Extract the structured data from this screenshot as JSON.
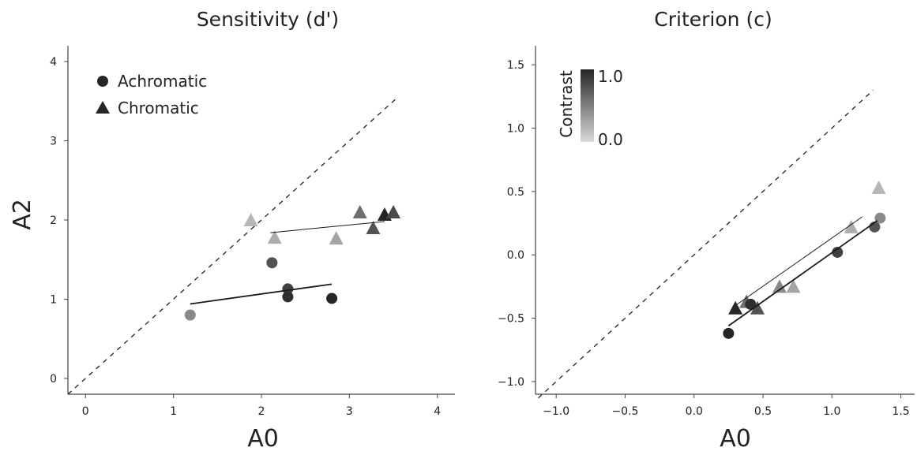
{
  "chart_data": [
    {
      "type": "scatter",
      "title": "Sensitivity (d')",
      "xlabel": "A0",
      "ylabel": "A2",
      "xlim": [
        -0.2,
        4.2
      ],
      "ylim": [
        -0.2,
        4.2
      ],
      "xticks": [
        0,
        1,
        2,
        3,
        4
      ],
      "yticks": [
        0,
        1,
        2,
        3,
        4
      ],
      "xtick_labels": [
        "0",
        "1",
        "2",
        "3",
        "4"
      ],
      "ytick_labels": [
        "0",
        "1",
        "2",
        "3",
        "4"
      ],
      "grid": false,
      "identity_line": {
        "style": "dashed",
        "from": [
          -0.2,
          -0.2
        ],
        "to": [
          3.55,
          3.55
        ]
      },
      "legend": {
        "position": "top-left",
        "entries": [
          {
            "label": "Achromatic",
            "marker": "circle"
          },
          {
            "label": "Chromatic",
            "marker": "triangle"
          }
        ]
      },
      "series": [
        {
          "name": "Achromatic",
          "marker": "circle",
          "points": [
            {
              "x": 1.19,
              "y": 0.8,
              "contrast": 0.45
            },
            {
              "x": 2.12,
              "y": 1.46,
              "contrast": 0.75
            },
            {
              "x": 2.3,
              "y": 1.13,
              "contrast": 0.85
            },
            {
              "x": 2.3,
              "y": 1.03,
              "contrast": 0.95
            },
            {
              "x": 2.8,
              "y": 1.01,
              "contrast": 1.0
            }
          ],
          "fit_line": {
            "from": [
              1.19,
              0.94
            ],
            "to": [
              2.8,
              1.19
            ],
            "weight": "thick"
          }
        },
        {
          "name": "Chromatic",
          "marker": "triangle",
          "points": [
            {
              "x": 1.88,
              "y": 2.0,
              "contrast": 0.2
            },
            {
              "x": 2.15,
              "y": 1.78,
              "contrast": 0.25
            },
            {
              "x": 2.85,
              "y": 1.77,
              "contrast": 0.3
            },
            {
              "x": 3.12,
              "y": 2.1,
              "contrast": 0.6
            },
            {
              "x": 3.27,
              "y": 1.9,
              "contrast": 0.75
            },
            {
              "x": 3.4,
              "y": 2.07,
              "contrast": 1.0
            },
            {
              "x": 3.5,
              "y": 2.1,
              "contrast": 0.8
            }
          ],
          "fit_line": {
            "from": [
              2.1,
              1.84
            ],
            "to": [
              3.4,
              1.98
            ],
            "weight": "thin"
          }
        }
      ]
    },
    {
      "type": "scatter",
      "title": "Criterion (c)",
      "xlabel": "A0",
      "ylabel": "",
      "xlim": [
        -1.15,
        1.6
      ],
      "ylim": [
        -1.1,
        1.65
      ],
      "xticks": [
        -1.0,
        -0.5,
        0.0,
        0.5,
        1.0,
        1.5
      ],
      "yticks": [
        -1.0,
        -0.5,
        0.0,
        0.5,
        1.0,
        1.5
      ],
      "xtick_labels": [
        "−1.0",
        "−0.5",
        "0.0",
        "0.5",
        "1.0",
        "1.5"
      ],
      "ytick_labels": [
        "−1.0",
        "−0.5",
        "0.0",
        "0.5",
        "1.0",
        "1.5"
      ],
      "grid": false,
      "identity_line": {
        "style": "dashed",
        "from": [
          -1.13,
          -1.13
        ],
        "to": [
          1.3,
          1.3
        ]
      },
      "colorbar": {
        "label": "Contrast",
        "min_label": "0.0",
        "max_label": "1.0",
        "position": "top-left",
        "colors": [
          "#d9d9d9",
          "#262626"
        ]
      },
      "series": [
        {
          "name": "Achromatic",
          "marker": "circle",
          "points": [
            {
              "x": 0.25,
              "y": -0.62,
              "contrast": 1.0
            },
            {
              "x": 0.41,
              "y": -0.39,
              "contrast": 0.95
            },
            {
              "x": 1.04,
              "y": 0.02,
              "contrast": 0.85
            },
            {
              "x": 1.31,
              "y": 0.22,
              "contrast": 0.75
            },
            {
              "x": 1.35,
              "y": 0.29,
              "contrast": 0.45
            }
          ],
          "fit_line": {
            "from": [
              0.25,
              -0.56
            ],
            "to": [
              1.33,
              0.27
            ],
            "weight": "thick"
          }
        },
        {
          "name": "Chromatic",
          "marker": "triangle",
          "points": [
            {
              "x": 0.3,
              "y": -0.42,
              "contrast": 1.0
            },
            {
              "x": 0.38,
              "y": -0.37,
              "contrast": 0.6
            },
            {
              "x": 0.46,
              "y": -0.42,
              "contrast": 0.75
            },
            {
              "x": 0.62,
              "y": -0.25,
              "contrast": 0.45
            },
            {
              "x": 0.72,
              "y": -0.25,
              "contrast": 0.3
            },
            {
              "x": 1.14,
              "y": 0.22,
              "contrast": 0.25
            },
            {
              "x": 1.34,
              "y": 0.53,
              "contrast": 0.2
            }
          ],
          "fit_line": {
            "from": [
              0.3,
              -0.4
            ],
            "to": [
              1.22,
              0.3
            ],
            "weight": "thin"
          }
        }
      ]
    }
  ]
}
